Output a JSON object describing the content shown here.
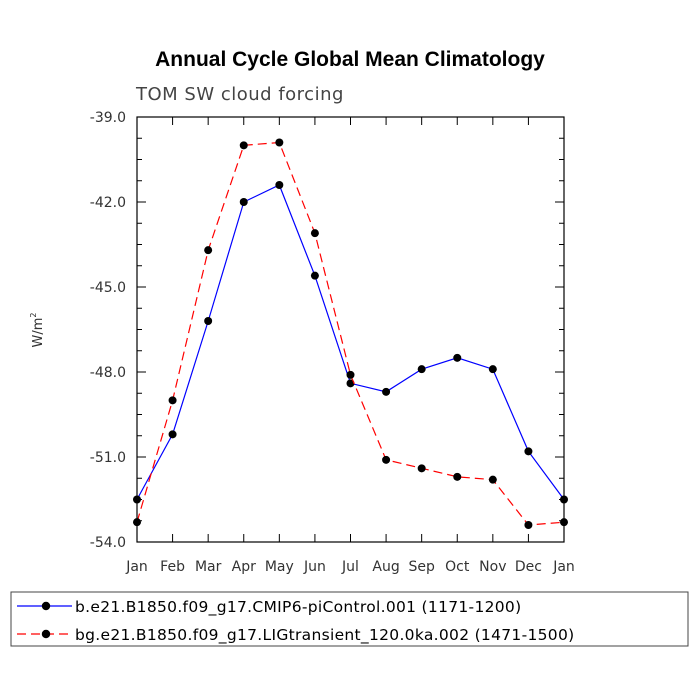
{
  "chart_data": {
    "type": "line",
    "title": "Annual Cycle Global Mean Climatology",
    "subtitle": "TOM SW cloud forcing",
    "ylabel_base": "W/m",
    "ylabel_exp": "2",
    "ylim": [
      -54.0,
      -39.0
    ],
    "y_ticks": [
      "-39.0",
      "-42.0",
      "-45.0",
      "-48.0",
      "-51.0",
      "-54.0"
    ],
    "y_tick_values": [
      -39,
      -42,
      -45,
      -48,
      -51,
      -54
    ],
    "categories": [
      "Jan",
      "Feb",
      "Mar",
      "Apr",
      "May",
      "Jun",
      "Jul",
      "Aug",
      "Sep",
      "Oct",
      "Nov",
      "Dec",
      "Jan"
    ],
    "grid": false,
    "legend_position": "bottom",
    "series": [
      {
        "name": "b.e21.B1850.f09_g17.CMIP6-piControl.001 (1171-1200)",
        "color": "#0000ff",
        "dash": "solid",
        "marker": "filled-circle",
        "values": [
          -52.5,
          -50.2,
          -46.2,
          -42.0,
          -41.4,
          -44.6,
          -48.4,
          -48.7,
          -47.9,
          -47.5,
          -47.9,
          -50.8,
          -52.5
        ]
      },
      {
        "name": "bg.e21.B1850.f09_g17.LIGtransient_120.0ka.002 (1471-1500)",
        "color": "#ff0000",
        "dash": "dashed",
        "marker": "filled-circle",
        "values": [
          -53.3,
          -49.0,
          -43.7,
          -40.0,
          -39.9,
          -43.1,
          -48.1,
          -51.1,
          -51.4,
          -51.7,
          -51.8,
          -53.4,
          -53.3
        ]
      }
    ]
  }
}
